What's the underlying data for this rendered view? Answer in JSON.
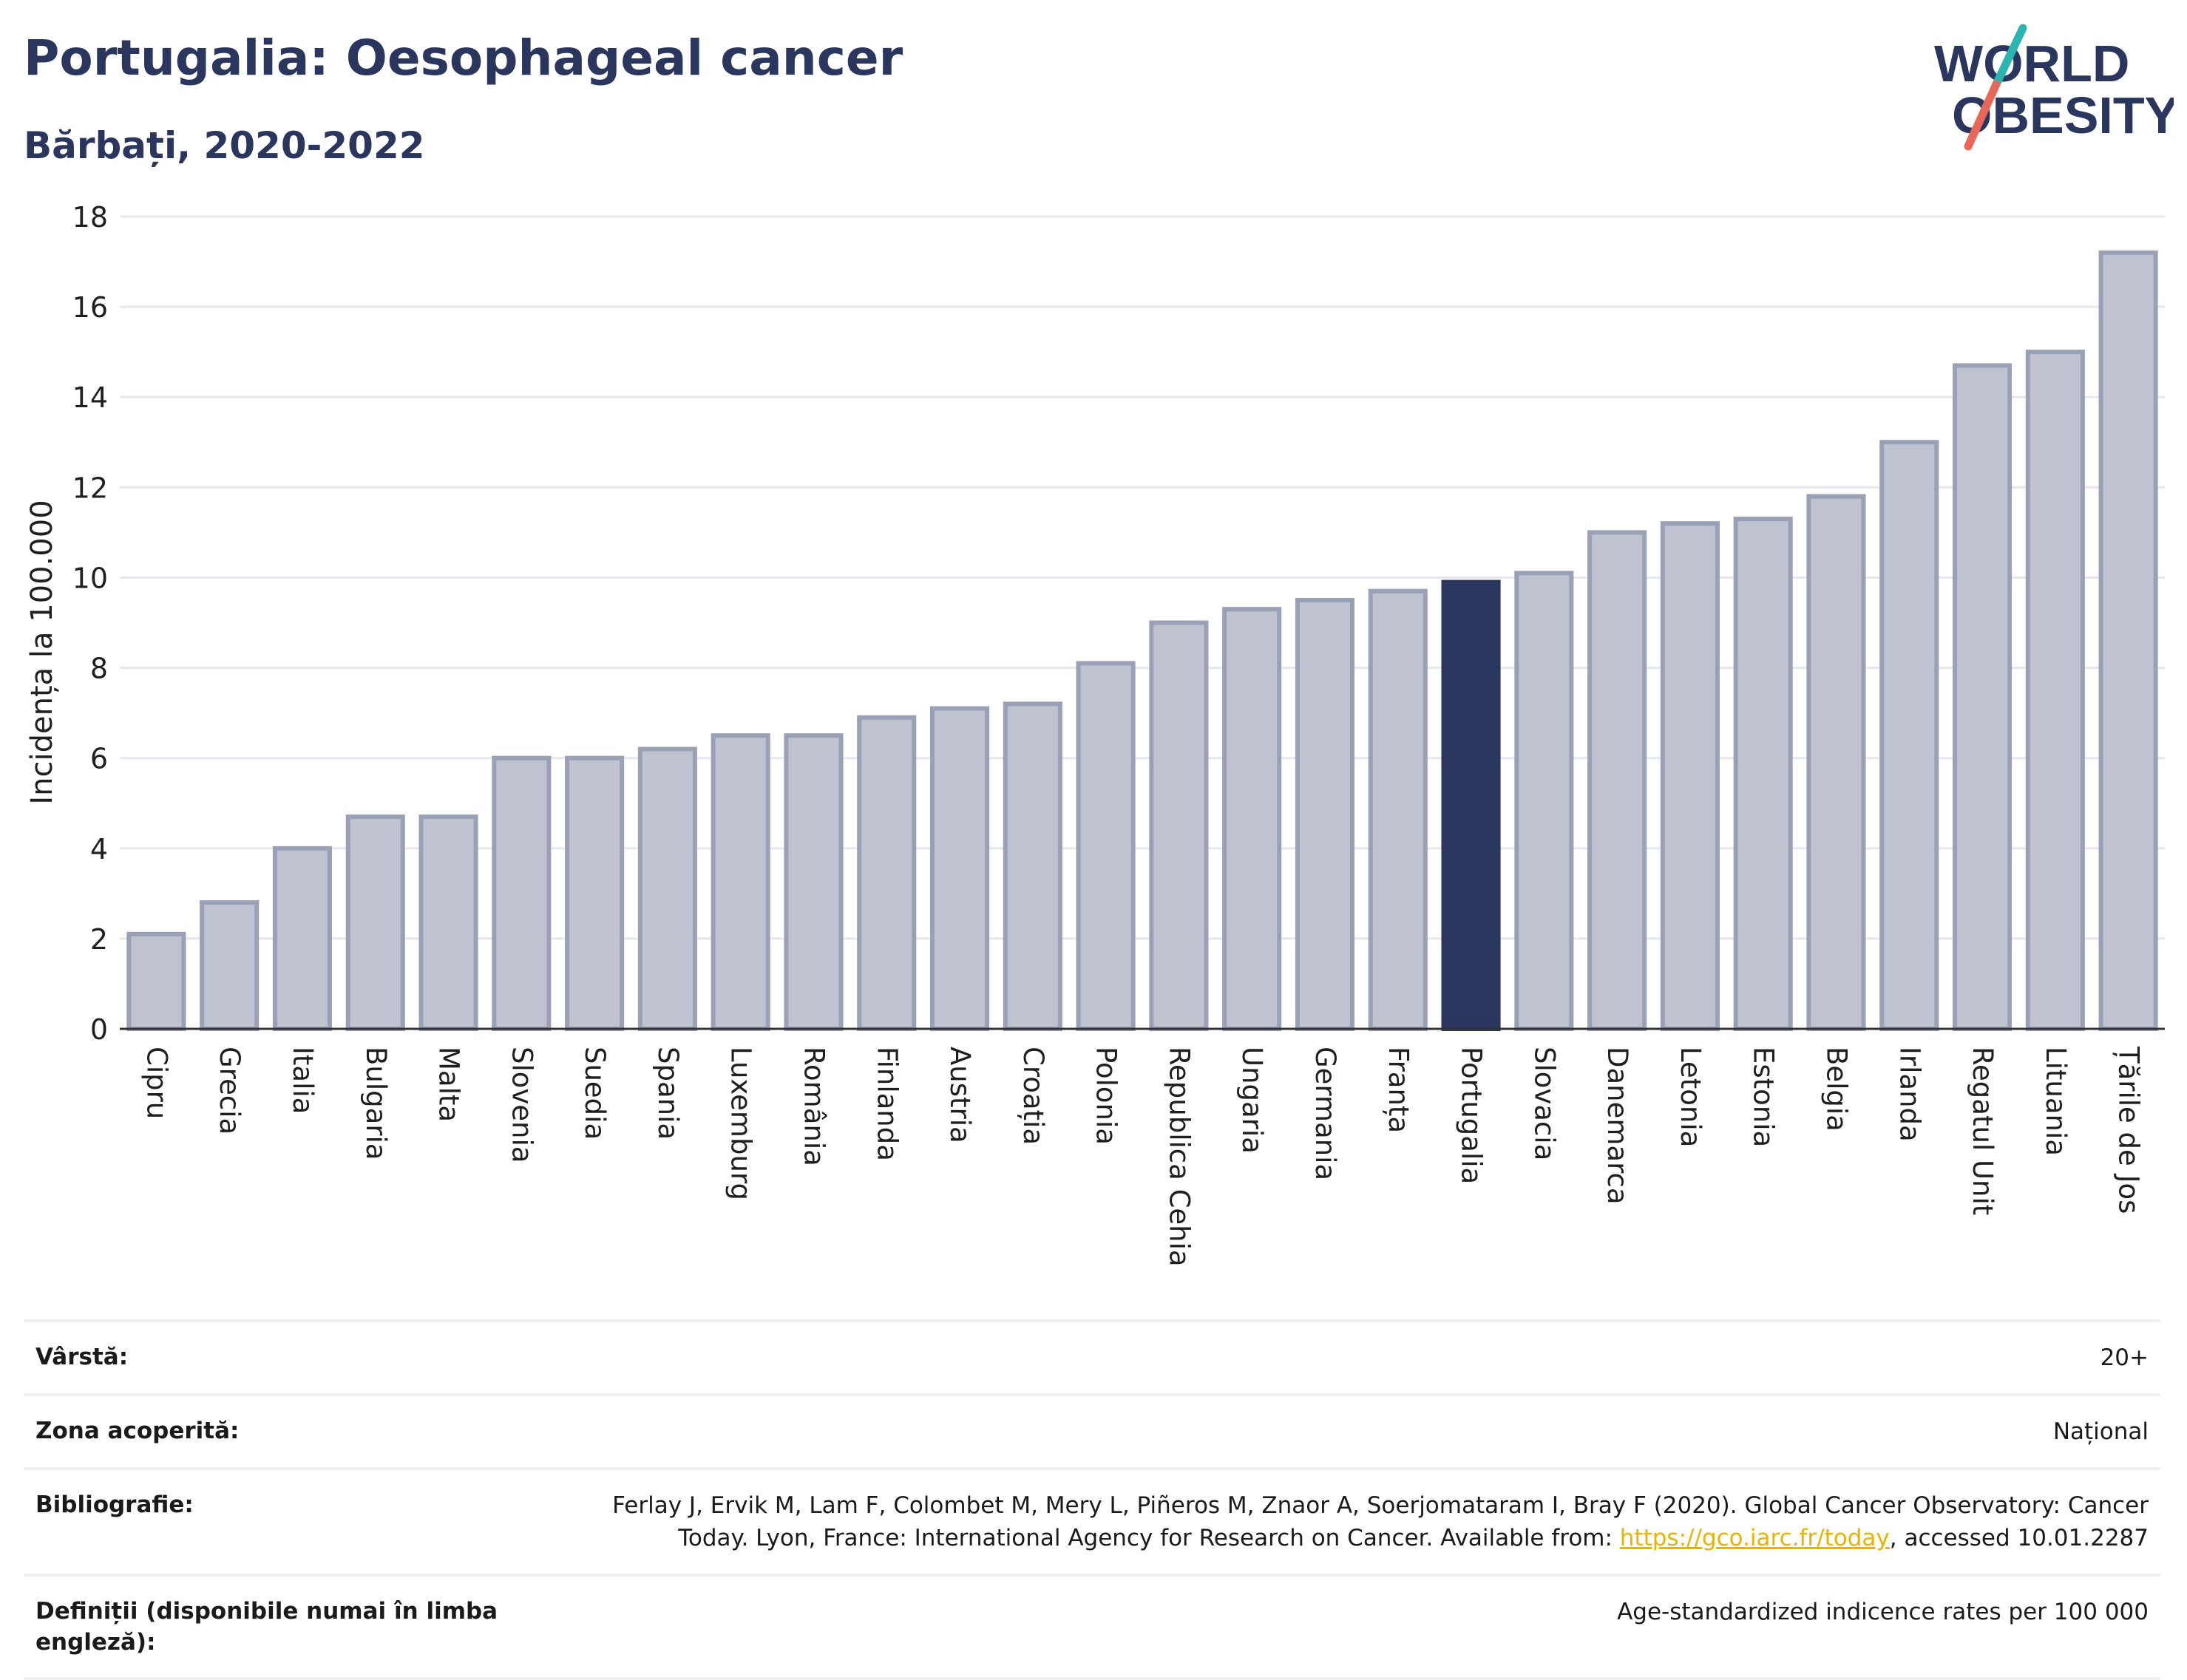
{
  "header": {
    "title": "Portugalia: Oesophageal cancer",
    "subtitle": "Bărbați, 2020-2022"
  },
  "logo": {
    "line1": "WORLD",
    "line2": "OBESITY",
    "colors": {
      "text": "#2b365e",
      "slash_top": "#2bb5b0",
      "slash_bottom": "#e8675a"
    }
  },
  "chart_data": {
    "type": "bar",
    "ylabel": "Incidența la 100.000",
    "xlabel": "",
    "ylim": [
      0,
      18
    ],
    "yticks": [
      0,
      2,
      4,
      6,
      8,
      10,
      12,
      14,
      16,
      18
    ],
    "grid": true,
    "highlight": "Portugalia",
    "colors": {
      "bar": "#bfc3cf",
      "bar_border": "#9aa0b6",
      "highlight": "#2b365e",
      "grid": "#e6e8ee"
    },
    "categories": [
      "Cipru",
      "Grecia",
      "Italia",
      "Bulgaria",
      "Malta",
      "Slovenia",
      "Suedia",
      "Spania",
      "Luxemburg",
      "România",
      "Finlanda",
      "Austria",
      "Croația",
      "Polonia",
      "Republica Cehia",
      "Ungaria",
      "Germania",
      "Franța",
      "Portugalia",
      "Slovacia",
      "Danemarca",
      "Letonia",
      "Estonia",
      "Belgia",
      "Irlanda",
      "Regatul Unit",
      "Lituania",
      "Țările de Jos"
    ],
    "values": [
      2.1,
      2.8,
      4.0,
      4.7,
      4.7,
      6.0,
      6.0,
      6.2,
      6.5,
      6.5,
      6.9,
      7.1,
      7.2,
      8.1,
      9.0,
      9.3,
      9.5,
      9.7,
      9.9,
      10.1,
      11.0,
      11.2,
      11.3,
      11.8,
      13.0,
      14.7,
      15.0,
      17.2
    ]
  },
  "info": {
    "age_label": "Vârstă:",
    "age_value": "20+",
    "area_label": "Zona acoperită:",
    "area_value": "Național",
    "bib_label": "Bibliografie:",
    "bib_text1": "Ferlay J, Ervik M, Lam F, Colombet M, Mery L, Piñeros M, Znaor A, Soerjomataram I, Bray F (2020). Global Cancer Observatory: Cancer Today. Lyon, France: International Agency for Research on Cancer. Available from: ",
    "bib_link": "https://gco.iarc.fr/today",
    "bib_text2": ", accessed 10.01.2287",
    "def_label": "Definiții (disponibile numai în limba engleză):",
    "def_value": "Age-standardized indicence rates per 100 000"
  }
}
